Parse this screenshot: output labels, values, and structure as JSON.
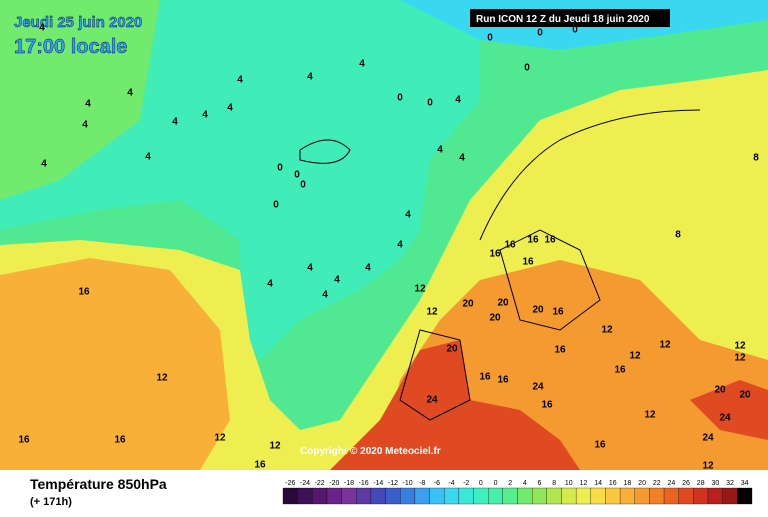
{
  "header": {
    "date": "Jeudi 25 juin 2020",
    "time": "17:00 locale",
    "run": "Run ICON 12 Z du Jeudi 18 juin 2020"
  },
  "copyright": "Copyright © 2020 Meteociel.fr",
  "footer": {
    "title": "Température 850hPa",
    "lead": "(+ 171h)"
  },
  "legend": {
    "labels": [
      -26,
      -24,
      -22,
      -20,
      -18,
      -16,
      -14,
      -12,
      -10,
      -8,
      -6,
      -4,
      -2,
      0,
      0,
      2,
      4,
      6,
      8,
      10,
      12,
      14,
      16,
      18,
      20,
      22,
      24,
      26,
      28,
      30,
      32,
      34
    ],
    "colors": [
      "#2a0a3a",
      "#3d1055",
      "#55186e",
      "#6b2288",
      "#7a3399",
      "#5b3aa6",
      "#4448b8",
      "#3a5fcc",
      "#3a7fe0",
      "#3aa0ee",
      "#3ac0f5",
      "#3ad8f0",
      "#3ae8d8",
      "#3ef0c0",
      "#46f0a8",
      "#58ee8c",
      "#72ea6e",
      "#92e65a",
      "#b2e650",
      "#d2ea4c",
      "#eeee50",
      "#f8dc48",
      "#fac840",
      "#f8b038",
      "#f49a30",
      "#f08028",
      "#ea6424",
      "#e04a22",
      "#d03420",
      "#b82020",
      "#981818",
      "#000000"
    ]
  },
  "contour_labels": [
    4,
    4,
    4,
    4,
    4,
    4,
    4,
    4,
    4,
    4,
    0,
    0,
    0,
    0,
    0,
    0,
    0,
    0,
    0,
    0,
    4,
    4,
    4,
    4,
    4,
    4,
    4,
    4,
    4,
    4,
    4,
    16,
    16,
    16,
    16,
    16,
    16,
    20,
    20,
    20,
    20,
    20,
    16,
    16,
    16,
    12,
    12,
    12,
    12,
    12,
    12,
    12,
    12,
    12,
    12,
    16,
    16,
    16,
    16,
    20,
    20,
    24,
    24,
    24,
    24,
    8,
    8,
    16,
    16,
    16,
    12,
    12,
    4
  ]
}
